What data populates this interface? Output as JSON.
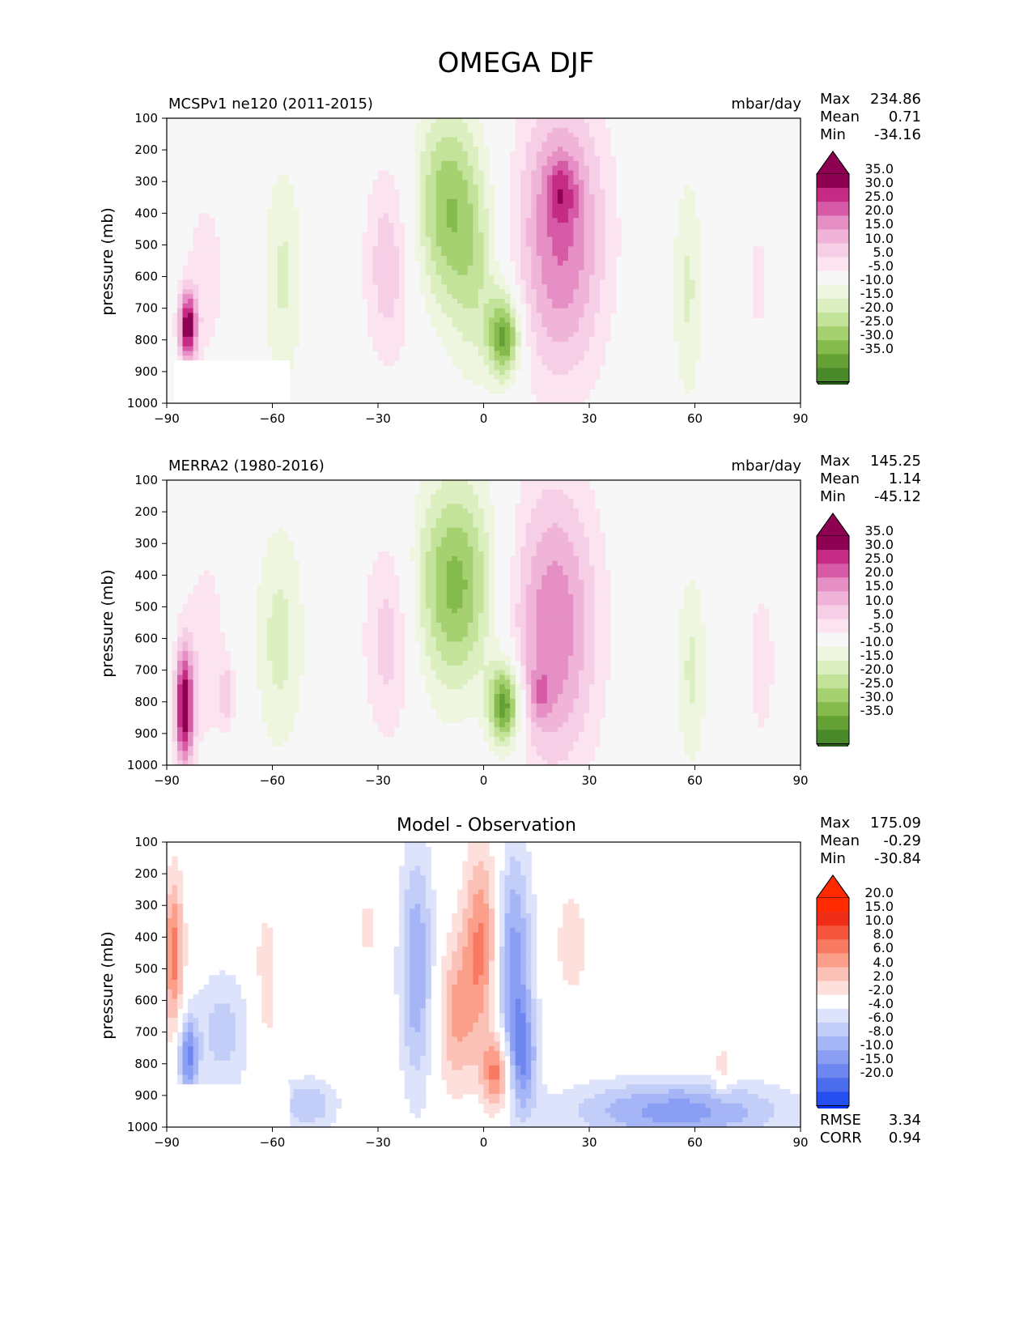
{
  "title": "OMEGA DJF",
  "colors": {
    "pink": [
      "#f7f7f7",
      "#fbe4f0",
      "#f6cfe6",
      "#f0b4d8",
      "#e58fc4",
      "#d75aa6",
      "#c52a85",
      "#8e0152"
    ],
    "green": [
      "#f7f7f7",
      "#eef6e0",
      "#dcefc0",
      "#c4e39a",
      "#a6d171",
      "#84bb4c",
      "#64a034",
      "#4a8a2a",
      "#2f6e1c",
      "#245c16"
    ],
    "diff_red": [
      "#ffffff",
      "#fde0dc",
      "#fcc1b6",
      "#fb9f8a",
      "#f97a62",
      "#f6553d",
      "#ef2d17",
      "#ff2a00"
    ],
    "diff_blue": [
      "#ffffff",
      "#dde3fb",
      "#c2cdf8",
      "#a6b5f5",
      "#8a9ff3",
      "#6e87f0",
      "#4c6cee",
      "#2550ef",
      "#0033ff"
    ]
  },
  "chart_data": [
    {
      "type": "heatmap",
      "title": "MCSPv1 ne120 (2011-2015)",
      "units": "mbar/day",
      "ylabel": "pressure (mb)",
      "x_ticks": [
        -90,
        -60,
        -30,
        0,
        30,
        60,
        90
      ],
      "y_ticks": [
        100,
        200,
        300,
        400,
        500,
        600,
        700,
        800,
        900,
        1000
      ],
      "xlim": [
        -90,
        90
      ],
      "ylim": [
        1000,
        100
      ],
      "stats": {
        "max": "234.86",
        "mean": "0.71",
        "min": "-34.16"
      },
      "colorbar_levels": [
        "35.0",
        "30.0",
        "25.0",
        "20.0",
        "15.0",
        "10.0",
        "5.0",
        "-5.0",
        "-10.0",
        "-15.0",
        "-20.0",
        "-25.0",
        "-30.0",
        "-35.0"
      ],
      "colorbar_kind": "omega",
      "masked_region": {
        "lat": [
          -88,
          -55
        ],
        "p": [
          865,
          1000
        ]
      },
      "features": [
        {
          "lat": 22,
          "p": 470,
          "dlat": 9,
          "dp": 320,
          "amp": 26
        },
        {
          "lat": 22,
          "p": 330,
          "dlat": 3,
          "dp": 70,
          "amp": 12
        },
        {
          "lat": -10,
          "p": 380,
          "dlat": 7,
          "dp": 230,
          "amp": -24
        },
        {
          "lat": 6,
          "p": 790,
          "dlat": 3.2,
          "dp": 95,
          "amp": -32
        },
        {
          "lat": -27,
          "p": 560,
          "dlat": 5,
          "dp": 230,
          "amp": 14
        },
        {
          "lat": -57,
          "p": 600,
          "dlat": 4,
          "dp": 260,
          "amp": -11
        },
        {
          "lat": -84,
          "p": 760,
          "dlat": 1.8,
          "dp": 80,
          "amp": 38
        },
        {
          "lat": -79,
          "p": 600,
          "dlat": 5,
          "dp": 250,
          "amp": 7
        },
        {
          "lat": 58,
          "p": 640,
          "dlat": 3,
          "dp": 260,
          "amp": -11
        },
        {
          "lat": 78,
          "p": 620,
          "dlat": 3,
          "dp": 200,
          "amp": 6
        },
        {
          "lat": -2,
          "p": 650,
          "dlat": 5,
          "dp": 220,
          "amp": -10
        }
      ]
    },
    {
      "type": "heatmap",
      "title": "MERRA2 (1980-2016)",
      "units": "mbar/day",
      "ylabel": "pressure (mb)",
      "x_ticks": [
        -90,
        -60,
        -30,
        0,
        30,
        60,
        90
      ],
      "y_ticks": [
        100,
        200,
        300,
        400,
        500,
        600,
        700,
        800,
        900,
        1000
      ],
      "xlim": [
        -90,
        90
      ],
      "ylim": [
        1000,
        100
      ],
      "stats": {
        "max": "145.25",
        "mean": "1.14",
        "min": "-45.12"
      },
      "colorbar_levels": [
        "35.0",
        "30.0",
        "25.0",
        "20.0",
        "15.0",
        "10.0",
        "5.0",
        "-5.0",
        "-10.0",
        "-15.0",
        "-20.0",
        "-25.0",
        "-30.0",
        "-35.0"
      ],
      "colorbar_kind": "omega",
      "masked_region": null,
      "features": [
        {
          "lat": 20,
          "p": 560,
          "dlat": 9,
          "dp": 330,
          "amp": 24
        },
        {
          "lat": 16,
          "p": 780,
          "dlat": 2.5,
          "dp": 60,
          "amp": 10
        },
        {
          "lat": -8,
          "p": 430,
          "dlat": 8,
          "dp": 240,
          "amp": -27
        },
        {
          "lat": 6,
          "p": 810,
          "dlat": 3.2,
          "dp": 95,
          "amp": -36
        },
        {
          "lat": -27,
          "p": 600,
          "dlat": 5,
          "dp": 230,
          "amp": 13
        },
        {
          "lat": -58,
          "p": 600,
          "dlat": 5,
          "dp": 260,
          "amp": -12
        },
        {
          "lat": -85,
          "p": 820,
          "dlat": 1.8,
          "dp": 130,
          "amp": 40
        },
        {
          "lat": -79,
          "p": 640,
          "dlat": 5,
          "dp": 260,
          "amp": 8
        },
        {
          "lat": -73,
          "p": 780,
          "dlat": 1.5,
          "dp": 70,
          "amp": 12
        },
        {
          "lat": 59,
          "p": 700,
          "dlat": 3,
          "dp": 230,
          "amp": -11
        },
        {
          "lat": 79,
          "p": 680,
          "dlat": 3,
          "dp": 200,
          "amp": 8
        }
      ]
    },
    {
      "type": "heatmap",
      "title": "Model - Observation",
      "units": "",
      "ylabel": "pressure (mb)",
      "x_ticks": [
        -90,
        -60,
        -30,
        0,
        30,
        60,
        90
      ],
      "y_ticks": [
        100,
        200,
        300,
        400,
        500,
        600,
        700,
        800,
        900,
        1000
      ],
      "xlim": [
        -90,
        90
      ],
      "ylim": [
        1000,
        100
      ],
      "stats": {
        "max": "175.09",
        "mean": "-0.29",
        "min": "-30.84"
      },
      "rmse": "3.34",
      "corr": "0.94",
      "colorbar_levels": [
        "20.0",
        "15.0",
        "10.0",
        "8.0",
        "6.0",
        "4.0",
        "2.0",
        "-2.0",
        "-4.0",
        "-6.0",
        "-8.0",
        "-10.0",
        "-15.0",
        "-20.0"
      ],
      "colorbar_kind": "diff",
      "masked_region": {
        "lat": [
          -88,
          -55
        ],
        "p": [
          865,
          1000
        ]
      },
      "features": [
        {
          "lat": 0,
          "p": 420,
          "dlat": 4,
          "dp": 220,
          "amp": 9
        },
        {
          "lat": 4,
          "p": 830,
          "dlat": 3,
          "dp": 90,
          "amp": 10
        },
        {
          "lat": -8,
          "p": 650,
          "dlat": 4,
          "dp": 180,
          "amp": 6
        },
        {
          "lat": -19,
          "p": 500,
          "dlat": 3.5,
          "dp": 280,
          "amp": -8
        },
        {
          "lat": 8,
          "p": 480,
          "dlat": 4,
          "dp": 260,
          "amp": -10
        },
        {
          "lat": 11,
          "p": 780,
          "dlat": 3,
          "dp": 120,
          "amp": -8
        },
        {
          "lat": -88,
          "p": 460,
          "dlat": 2,
          "dp": 180,
          "amp": 9
        },
        {
          "lat": -84,
          "p": 780,
          "dlat": 2,
          "dp": 90,
          "amp": -10
        },
        {
          "lat": -74,
          "p": 700,
          "dlat": 6,
          "dp": 140,
          "amp": -5
        },
        {
          "lat": -62,
          "p": 560,
          "dlat": 3,
          "dp": 240,
          "amp": 3
        },
        {
          "lat": -50,
          "p": 930,
          "dlat": 6,
          "dp": 60,
          "amp": -6
        },
        {
          "lat": 55,
          "p": 950,
          "dlat": 22,
          "dp": 70,
          "amp": -9
        },
        {
          "lat": 25,
          "p": 420,
          "dlat": 4,
          "dp": 150,
          "amp": 3
        },
        {
          "lat": 68,
          "p": 820,
          "dlat": 2,
          "dp": 60,
          "amp": 4
        },
        {
          "lat": -33,
          "p": 370,
          "dlat": 2,
          "dp": 80,
          "amp": 3
        }
      ]
    }
  ],
  "labels": {
    "max": "Max",
    "mean": "Mean",
    "min": "Min",
    "rmse": "RMSE",
    "corr": "CORR"
  }
}
